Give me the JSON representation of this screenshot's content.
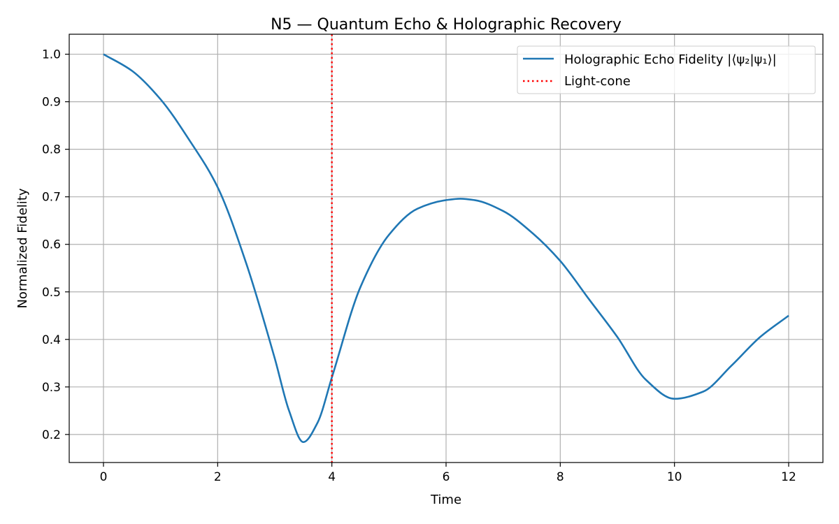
{
  "chart_data": {
    "type": "line",
    "title": "N5 — Quantum Echo & Holographic Recovery",
    "xlabel": "Time",
    "ylabel": "Normalized Fidelity",
    "xlim": [
      -0.6,
      12.6
    ],
    "ylim": [
      0.141,
      1.042
    ],
    "xticks": [
      0,
      2,
      4,
      6,
      8,
      10,
      12
    ],
    "yticks": [
      0.2,
      0.3,
      0.4,
      0.5,
      0.6,
      0.7,
      0.8,
      0.9,
      1.0
    ],
    "xtick_labels": [
      "0",
      "2",
      "4",
      "6",
      "8",
      "10",
      "12"
    ],
    "ytick_labels": [
      "0.2",
      "0.3",
      "0.4",
      "0.5",
      "0.6",
      "0.7",
      "0.8",
      "0.9",
      "1.0"
    ],
    "grid": true,
    "legend_position": "upper-right",
    "series": [
      {
        "name": "Holographic Echo Fidelity |⟨ψ₂|ψ₁⟩|",
        "color": "#1f77b4",
        "style": "solid",
        "x": [
          0,
          0.5,
          1.0,
          1.5,
          2.0,
          2.5,
          3.0,
          3.25,
          3.5,
          3.75,
          4.0,
          4.5,
          5.0,
          5.5,
          6.0,
          6.25,
          6.5,
          7.0,
          7.5,
          8.0,
          8.5,
          9.0,
          9.5,
          10.0,
          10.5,
          11.0,
          11.5,
          12.0
        ],
        "y": [
          1.0,
          0.965,
          0.905,
          0.82,
          0.72,
          0.56,
          0.36,
          0.25,
          0.184,
          0.225,
          0.32,
          0.51,
          0.62,
          0.675,
          0.693,
          0.696,
          0.693,
          0.67,
          0.625,
          0.565,
          0.485,
          0.405,
          0.315,
          0.275,
          0.29,
          0.345,
          0.405,
          0.45
        ]
      },
      {
        "name": "Light-cone",
        "color": "#ff0000",
        "style": "dotted",
        "vline_x": 4.0
      }
    ]
  }
}
